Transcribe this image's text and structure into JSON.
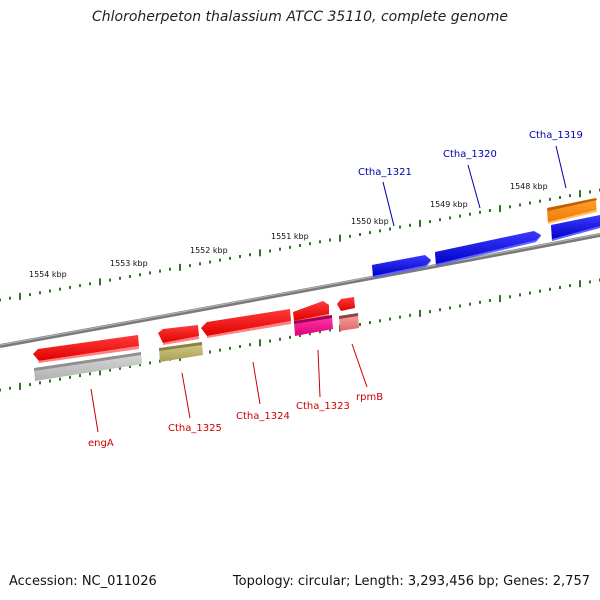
{
  "title": "Chloroherpeton thalassium ATCC 35110, complete genome",
  "footer": {
    "accession": "Accession: NC_011026",
    "topology": "Topology: circular; Length: 3,293,456 bp; Genes: 2,757"
  },
  "colors": {
    "backbone": "#777777",
    "ticks": "#2a7a1e",
    "forward_gene": "#0000dd",
    "forward_label": "#0000aa",
    "reverse_gene": "#ff0000",
    "reverse_label": "#cc0000",
    "orange_gene": "#ff8800",
    "gray_feature": "#c8c8c8",
    "olive_feature": "#bdb56a",
    "pink_feature": "#ff1493",
    "light_red_feature": "#f08080"
  },
  "ruler": {
    "labels": [
      "1554 kbp",
      "1553 kbp",
      "1552 kbp",
      "1551 kbp",
      "1550 kbp",
      "1549 kbp",
      "1548 kbp"
    ]
  },
  "genes": [
    {
      "label": "Ctha_1319",
      "strand": "+"
    },
    {
      "label": "Ctha_1320",
      "strand": "+"
    },
    {
      "label": "Ctha_1321",
      "strand": "+"
    },
    {
      "label": "engA",
      "strand": "-"
    },
    {
      "label": "Ctha_1325",
      "strand": "-"
    },
    {
      "label": "Ctha_1324",
      "strand": "-"
    },
    {
      "label": "Ctha_1323",
      "strand": "-"
    },
    {
      "label": "rpmB",
      "strand": "-"
    }
  ]
}
